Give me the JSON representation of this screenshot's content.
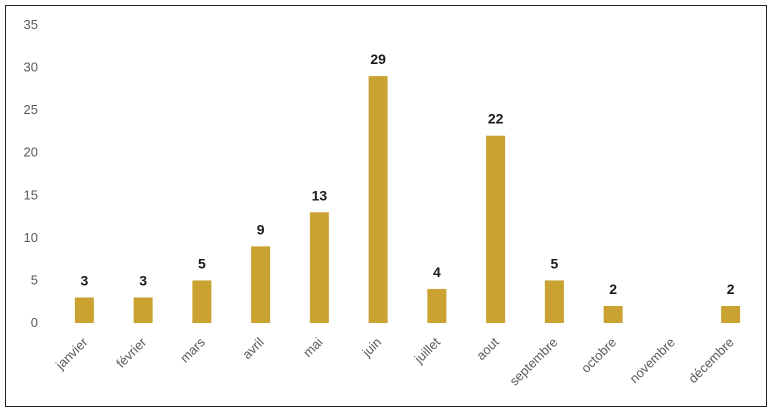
{
  "chart_data": {
    "type": "bar",
    "categories": [
      "janvier",
      "février",
      "mars",
      "avril",
      "mai",
      "juin",
      "juillet",
      "aout",
      "septembre",
      "octobre",
      "novembre",
      "décembre"
    ],
    "values": [
      3,
      3,
      5,
      9,
      13,
      29,
      4,
      22,
      5,
      2,
      null,
      2
    ],
    "data_labels": [
      "3",
      "3",
      "5",
      "9",
      "13",
      "29",
      "4",
      "22",
      "5",
      "2",
      "",
      "2"
    ],
    "title": "",
    "xlabel": "",
    "ylabel": "",
    "ylim": [
      0,
      35
    ],
    "yticks": [
      "0",
      "5",
      "10",
      "15",
      "20",
      "25",
      "30",
      "35"
    ],
    "grid": false,
    "legend": "none",
    "colors": {
      "bar": "#c9a232",
      "axis_text": "#595959",
      "label_text": "#1a1a1a"
    }
  }
}
